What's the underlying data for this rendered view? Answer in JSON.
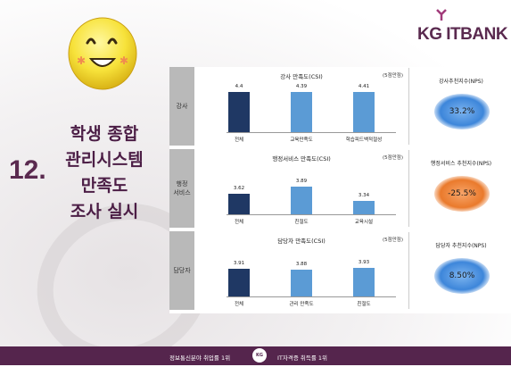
{
  "logo": {
    "kg": "KG",
    "itbank": "ITBANK",
    "colors": {
      "brand": "#5a2a4f"
    }
  },
  "heading": {
    "number": "12.",
    "lines": [
      "학생 종합",
      "관리시스템",
      "만족도",
      "조사 실시"
    ]
  },
  "rows": [
    {
      "label": "강사",
      "chart_title": "강사 만족도(CSI)",
      "unit": "(5점만점)",
      "nps_title": "강사추천지수(NPS)",
      "nps_value": "33.2%",
      "nps_color": "blue"
    },
    {
      "label": "행정\n서비스",
      "chart_title": "행정서비스 만족도(CSI)",
      "unit": "(5점만점)",
      "nps_title": "행정서비스 추천지수(NPS)",
      "nps_value": "-25.5%",
      "nps_color": "orange"
    },
    {
      "label": "담당자",
      "chart_title": "담당자 만족도(CSI)",
      "unit": "(5점만점)",
      "nps_title": "담당자 추천지수(NPS)",
      "nps_value": "8.50%",
      "nps_color": "blue"
    }
  ],
  "chart_data": [
    {
      "type": "bar",
      "title": "강사 만족도(CSI)",
      "categories": [
        "전체",
        "교육만족도",
        "학습피드백적절성"
      ],
      "values": [
        4.4,
        4.39,
        4.41
      ],
      "value_labels": [
        "4.4",
        "4.39",
        "4.41"
      ],
      "colors": [
        "#1f3864",
        "#5b9bd5",
        "#5b9bd5"
      ]
    },
    {
      "type": "bar",
      "title": "행정서비스 만족도(CSI)",
      "categories": [
        "전체",
        "친절도",
        "교육시설"
      ],
      "values": [
        3.62,
        3.89,
        3.34
      ],
      "value_labels": [
        "3.62",
        "3.89",
        "3.34"
      ],
      "colors": [
        "#1f3864",
        "#5b9bd5",
        "#5b9bd5"
      ]
    },
    {
      "type": "bar",
      "title": "담당자 만족도(CSI)",
      "categories": [
        "전체",
        "관리 만족도",
        "친절도"
      ],
      "values": [
        3.91,
        3.88,
        3.93
      ],
      "value_labels": [
        "3.91",
        "3.88",
        "3.93"
      ],
      "colors": [
        "#1f3864",
        "#5b9bd5",
        "#5b9bd5"
      ]
    }
  ],
  "footer": {
    "left": "정보통신분야 취업률 1위",
    "badge": "KG",
    "right": "IT자격증 취득률 1위"
  }
}
